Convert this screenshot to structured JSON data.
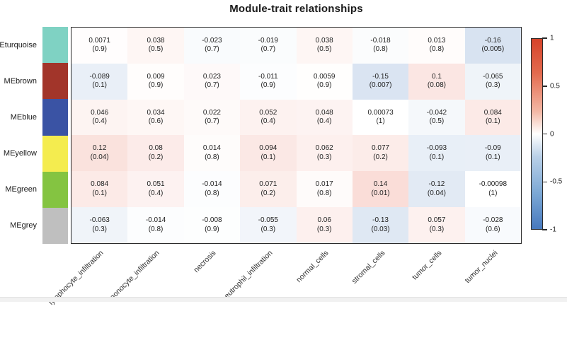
{
  "title": "Module-trait relationships",
  "colors": {
    "positive_max": "#e3492f",
    "negative_max": "#4a7cbd",
    "plot_border": "#2b2b2b"
  },
  "modules": [
    {
      "label": "MEturquoise",
      "color": "#7fd2c3"
    },
    {
      "label": "MEbrown",
      "color": "#a2352a"
    },
    {
      "label": "MEblue",
      "color": "#3a53a4"
    },
    {
      "label": "MEyellow",
      "color": "#f4ec4f"
    },
    {
      "label": "MEgreen",
      "color": "#84c441"
    },
    {
      "label": "MEgrey",
      "color": "#bfbfbf"
    }
  ],
  "chart_data": {
    "type": "heatmap",
    "title": "Module-trait relationships",
    "rows": [
      "MEturquoise",
      "MEbrown",
      "MEblue",
      "MEyellow",
      "MEgreen",
      "MEgrey"
    ],
    "columns": [
      "lymphocyte_infiltration",
      "monocyte_infiltration",
      "necrosis",
      "neutrophil_infiltration",
      "normal_cells",
      "stromal_cells",
      "tumor_cells",
      "tumor_nuclei"
    ],
    "correlations": [
      [
        "0.0071",
        "0.038",
        "-0.023",
        "-0.019",
        "0.038",
        "-0.018",
        "0.013",
        "-0.16"
      ],
      [
        "-0.089",
        "0.009",
        "0.023",
        "-0.011",
        "0.0059",
        "-0.15",
        "0.1",
        "-0.065"
      ],
      [
        "0.046",
        "0.034",
        "0.022",
        "0.052",
        "0.048",
        "0.00073",
        "-0.042",
        "0.084"
      ],
      [
        "0.12",
        "0.08",
        "0.014",
        "0.094",
        "0.062",
        "0.077",
        "-0.093",
        "-0.09"
      ],
      [
        "0.084",
        "0.051",
        "-0.014",
        "0.071",
        "0.017",
        "0.14",
        "-0.12",
        "-0.00098"
      ],
      [
        "-0.063",
        "-0.014",
        "-0.008",
        "-0.055",
        "0.06",
        "-0.13",
        "0.057",
        "-0.028"
      ]
    ],
    "p_values": [
      [
        "(0.9)",
        "(0.5)",
        "(0.7)",
        "(0.7)",
        "(0.5)",
        "(0.8)",
        "(0.8)",
        "(0.005)"
      ],
      [
        "(0.1)",
        "(0.9)",
        "(0.7)",
        "(0.9)",
        "(0.9)",
        "(0.007)",
        "(0.08)",
        "(0.3)"
      ],
      [
        "(0.4)",
        "(0.6)",
        "(0.7)",
        "(0.4)",
        "(0.4)",
        "(1)",
        "(0.5)",
        "(0.1)"
      ],
      [
        "(0.04)",
        "(0.2)",
        "(0.8)",
        "(0.1)",
        "(0.3)",
        "(0.2)",
        "(0.1)",
        "(0.1)"
      ],
      [
        "(0.1)",
        "(0.4)",
        "(0.8)",
        "(0.2)",
        "(0.8)",
        "(0.01)",
        "(0.04)",
        "(1)"
      ],
      [
        "(0.3)",
        "(0.8)",
        "(0.9)",
        "(0.3)",
        "(0.3)",
        "(0.03)",
        "(0.3)",
        "(0.6)"
      ]
    ],
    "colorbar": {
      "ticks": [
        "1",
        "0.5",
        "0",
        "-0.5",
        "-1"
      ],
      "min": -1,
      "max": 1,
      "legend_position": "right"
    },
    "axis": {
      "xlabel": "",
      "ylabel": "",
      "x_tick_rotation_deg": 45
    },
    "grid": false
  }
}
